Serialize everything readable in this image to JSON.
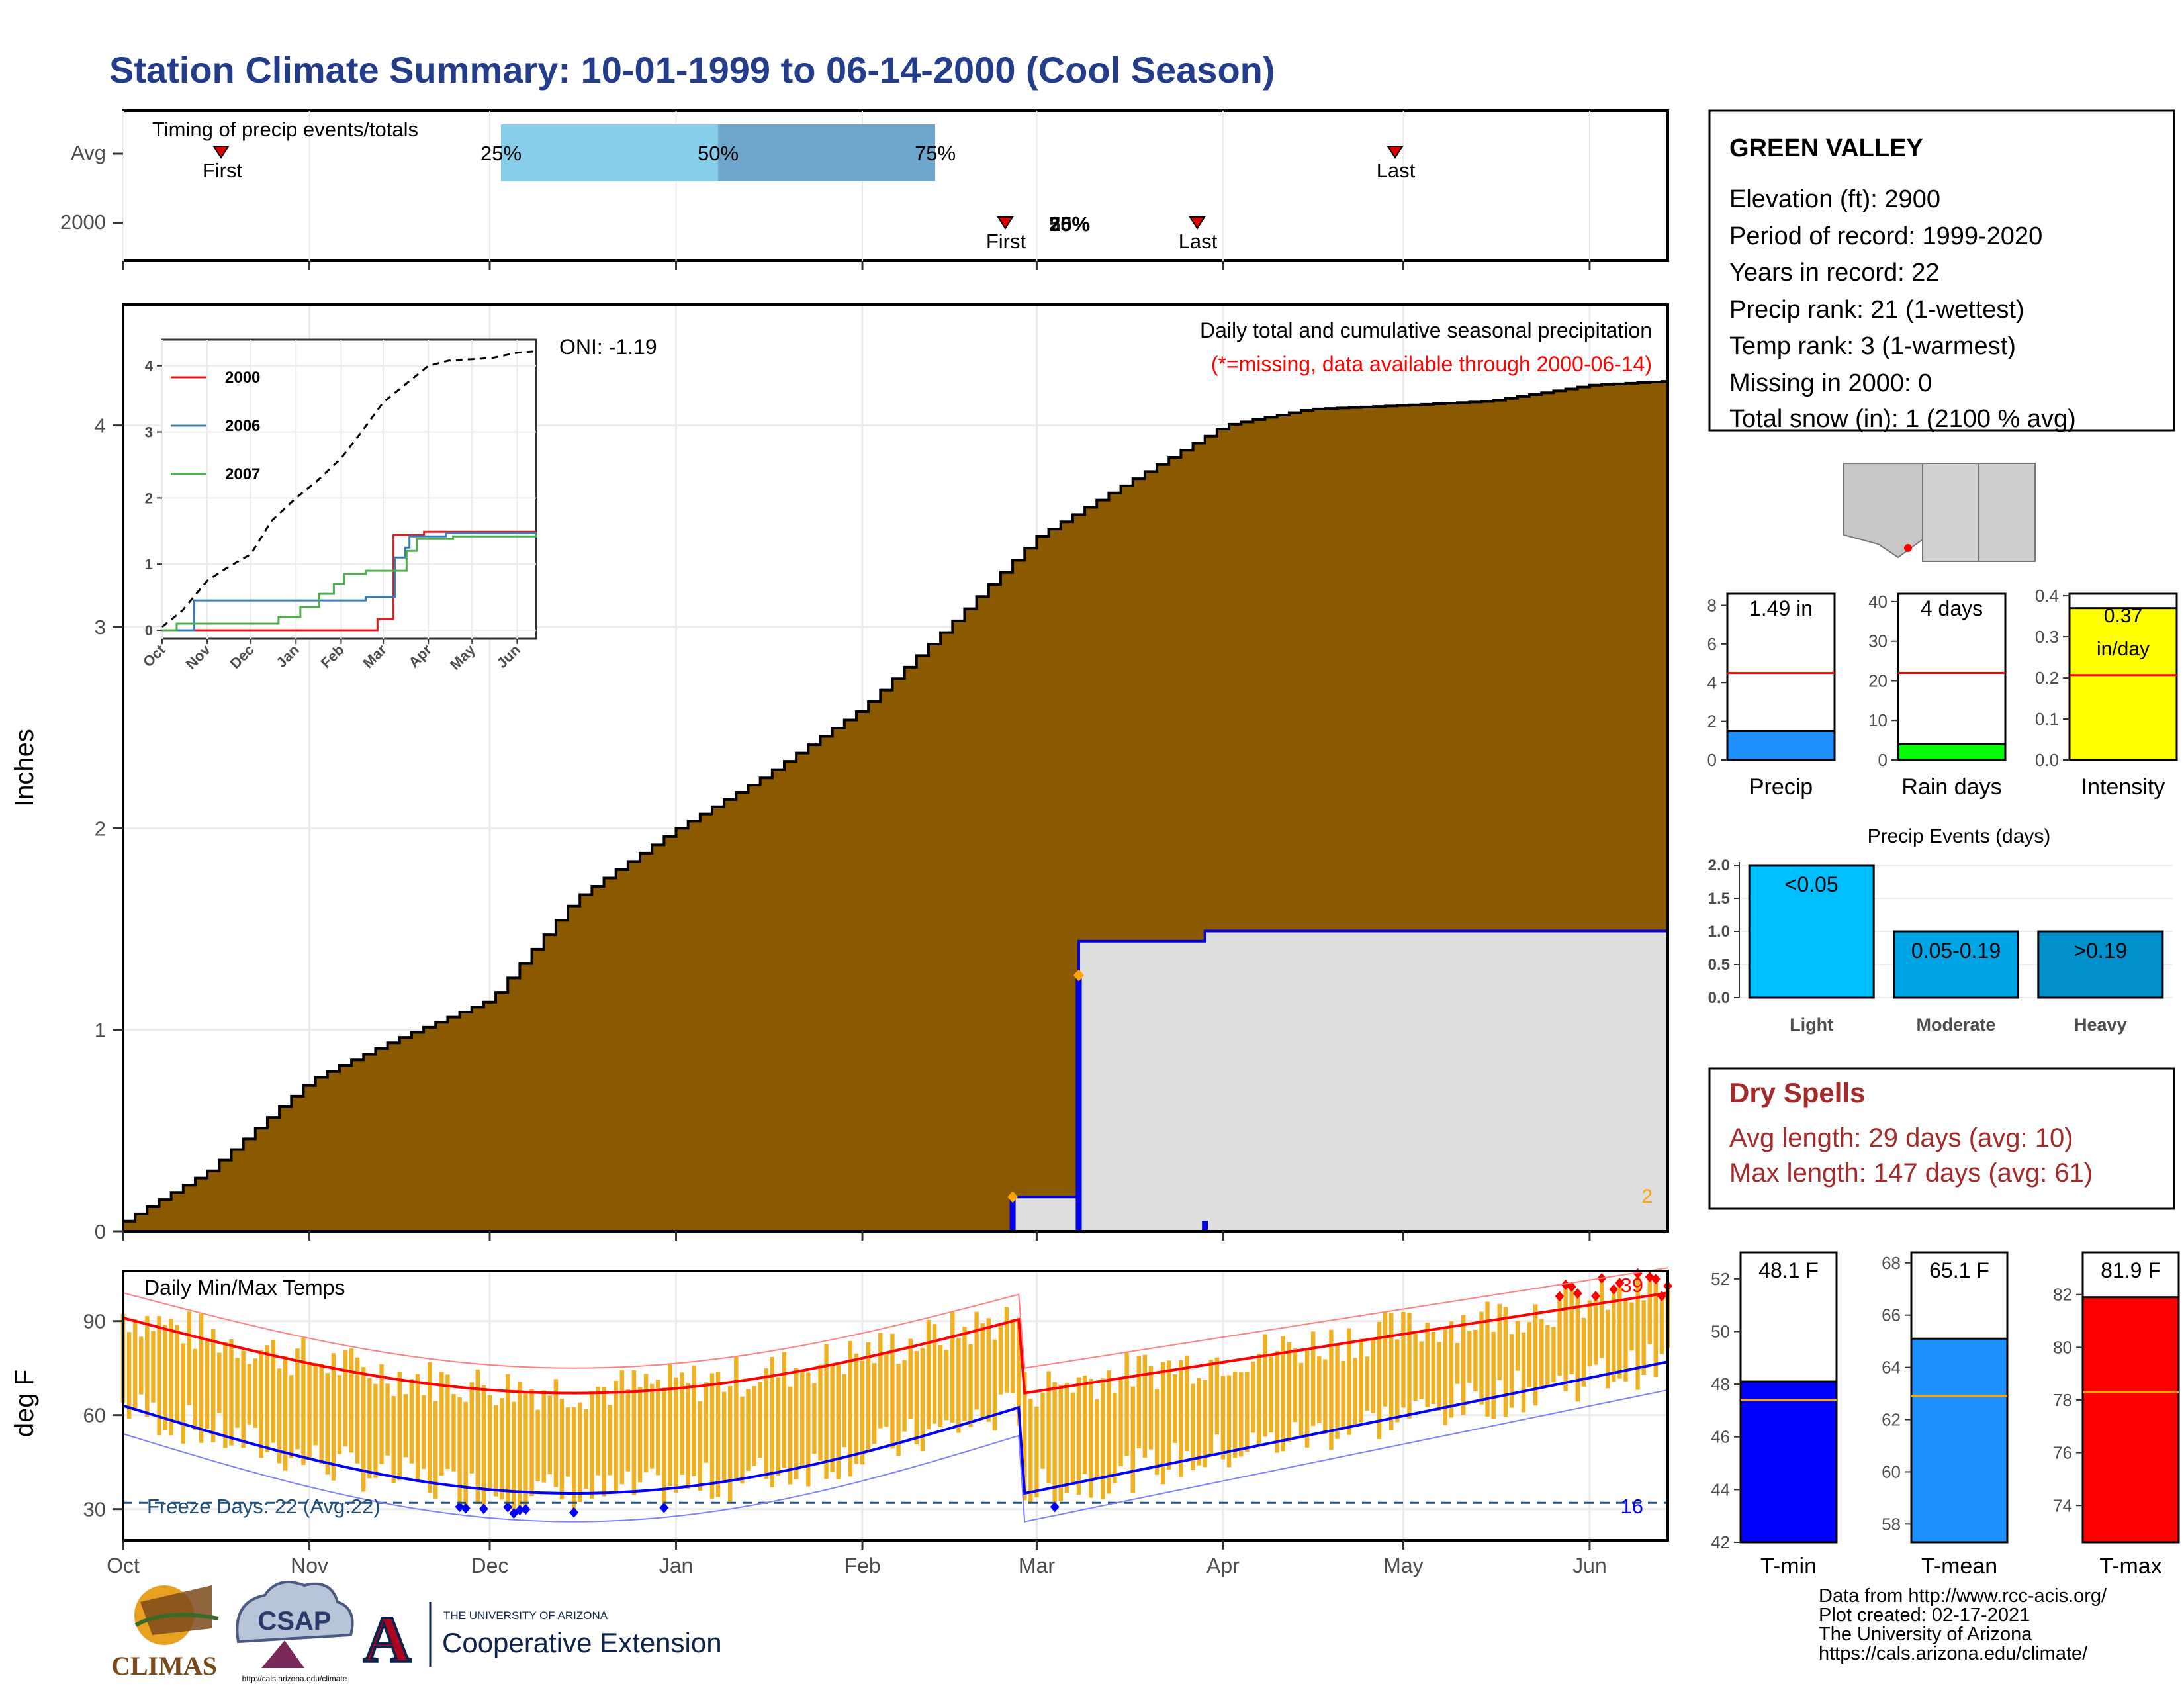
{
  "title": "Station Climate Summary: 10-01-1999 to 06-14-2000 (Cool Season)",
  "timing": {
    "label": "Timing of precip events/totals",
    "rows": [
      "Avg",
      "2000"
    ],
    "avg": {
      "first": "First",
      "last": "Last",
      "p25": "25%",
      "p50": "50%",
      "p75": "75%"
    },
    "y2000": {
      "first": "First",
      "last": "Last",
      "pct_a": "25%",
      "pct_b": "50%",
      "pct_c": "75%"
    }
  },
  "precip_panel": {
    "y_title": "Inches",
    "y_ticks": [
      "0",
      "1",
      "2",
      "3",
      "4"
    ],
    "x_months": [
      "Oct",
      "Nov",
      "Dec",
      "Jan",
      "Feb",
      "Mar",
      "Apr",
      "May",
      "Jun"
    ],
    "oni": "ONI: -1.19",
    "note1": "Daily total and cumulative seasonal precipitation",
    "note2": "(*=missing, data available through 2000-06-14)",
    "corner_count": "2",
    "inset": {
      "legend": [
        "2000",
        "2006",
        "2007"
      ],
      "y_ticks": [
        "0",
        "1",
        "2",
        "3",
        "4"
      ],
      "x_months": [
        "Oct",
        "Nov",
        "Dec",
        "Jan",
        "Feb",
        "Mar",
        "Apr",
        "May",
        "Jun"
      ],
      "colors": {
        "2000": "#e41a1c",
        "2006": "#377eb8",
        "2007": "#4daf4a"
      }
    }
  },
  "temp_panel": {
    "label": "Daily Min/Max Temps",
    "y_title": "deg F",
    "y_ticks": [
      "30",
      "60",
      "90"
    ],
    "x_months": [
      "Oct",
      "Nov",
      "Dec",
      "Jan",
      "Feb",
      "Mar",
      "Apr",
      "May",
      "Jun"
    ],
    "freeze": "Freeze Days: 22 (Avg:22)",
    "hot_count": "39",
    "cold_count": "16"
  },
  "station": {
    "name": "GREEN VALLEY",
    "lines": [
      "Elevation (ft): 2900",
      "Period of record: 1999-2020",
      "Years in record: 22",
      "Precip rank: 21 (1-wettest)",
      "Temp rank: 3 (1-warmest)",
      "Missing in 2000: 0",
      "Total snow (in): 1 (2100 % avg)"
    ]
  },
  "mini_bars": [
    {
      "label": "Precip",
      "value_text": "1.49 in",
      "ticks": [
        "0",
        "2",
        "4",
        "6",
        "8"
      ],
      "ymax": 8.6,
      "value": 1.49,
      "avg": 4.5,
      "color": "#1e90ff"
    },
    {
      "label": "Rain days",
      "value_text": "4 days",
      "ticks": [
        "0",
        "10",
        "20",
        "30",
        "40"
      ],
      "ymax": 42,
      "value": 4,
      "avg": 22,
      "color": "#00ff00"
    },
    {
      "label": "Intensity",
      "value_text": "0.37 in/day",
      "value_line1": "0.37",
      "value_line2": "in/day",
      "ticks": [
        "0.0",
        "0.1",
        "0.2",
        "0.3",
        "0.4"
      ],
      "ymax": 0.405,
      "value": 0.37,
      "avg": 0.207,
      "color": "#ffff00"
    }
  ],
  "events": {
    "title": "Precip Events (days)",
    "ticks": [
      "0.0",
      "0.5",
      "1.0",
      "1.5",
      "2.0"
    ],
    "categories": [
      "Light",
      "Moderate",
      "Heavy"
    ],
    "bin_labels": [
      "<0.05",
      "0.05-0.19",
      ">0.19"
    ],
    "values": [
      2,
      1,
      1
    ],
    "colors": [
      "#00bfff",
      "#00a5e6",
      "#0090cc"
    ]
  },
  "dry_spells": {
    "title": "Dry Spells",
    "avg": "Avg length: 29 days (avg: 10)",
    "max": "Max length: 147 days (avg: 61)"
  },
  "temp_bars": [
    {
      "label": "T-min",
      "value_text": "48.1 F",
      "ticks": [
        "42",
        "44",
        "46",
        "48",
        "50",
        "52"
      ],
      "ymin": 42,
      "ymax": 53,
      "value": 48.1,
      "avg": 47.4,
      "color": "#0000ff"
    },
    {
      "label": "T-mean",
      "value_text": "65.1 F",
      "ticks": [
        "58",
        "60",
        "62",
        "64",
        "66",
        "68"
      ],
      "ymin": 57.3,
      "ymax": 68.4,
      "value": 65.1,
      "avg": 62.9,
      "color": "#1e90ff"
    },
    {
      "label": "T-max",
      "value_text": "81.9 F",
      "ticks": [
        "74",
        "76",
        "78",
        "80",
        "82"
      ],
      "ymin": 72.6,
      "ymax": 83.6,
      "value": 81.9,
      "avg": 78.3,
      "color": "#ff0000"
    }
  ],
  "footer": {
    "lines": [
      "Data from http://www.rcc-acis.org/",
      "Plot created: 02-17-2021",
      "The University of Arizona",
      "https://cals.arizona.edu/climate/"
    ],
    "logos": {
      "climas": "CLIMAS",
      "csap": "CSAP",
      "csap_url": "http://cals.arizona.edu/climate",
      "ua_letter": "A",
      "ua_small": "THE UNIVERSITY OF ARIZONA",
      "ua_big": "Cooperative Extension"
    }
  },
  "chart_data": {
    "type": "area",
    "title": "Daily total and cumulative seasonal precipitation",
    "ylabel": "Inches",
    "ylim": [
      0,
      4.6
    ],
    "x_range": [
      "1999-10-01",
      "2000-06-14"
    ],
    "series": [
      {
        "name": "average cumulative",
        "x": [
          "1999-10-01",
          "1999-10-15",
          "1999-11-01",
          "1999-11-15",
          "1999-12-01",
          "1999-12-15",
          "2000-01-01",
          "2000-01-15",
          "2000-02-01",
          "2000-02-15",
          "2000-03-01",
          "2000-03-15",
          "2000-04-01",
          "2000-04-15",
          "2000-05-01",
          "2000-05-15",
          "2000-06-01",
          "2000-06-14"
        ],
        "values": [
          0.05,
          0.3,
          0.75,
          0.95,
          1.15,
          1.65,
          2.0,
          2.25,
          2.6,
          3.0,
          3.45,
          3.7,
          4.0,
          4.08,
          4.1,
          4.12,
          4.2,
          4.22
        ]
      },
      {
        "name": "2000 cumulative",
        "x": [
          "1999-10-01",
          "2000-02-25",
          "2000-02-26",
          "2000-03-07",
          "2000-03-08",
          "2000-03-28",
          "2000-03-29",
          "2000-06-14"
        ],
        "values": [
          0,
          0,
          0.17,
          0.17,
          1.44,
          1.44,
          1.49,
          1.49
        ]
      },
      {
        "name": "2000 daily",
        "x": [
          "2000-02-26",
          "2000-03-08",
          "2000-03-29"
        ],
        "values": [
          0.17,
          1.27,
          0.05
        ]
      }
    ]
  }
}
